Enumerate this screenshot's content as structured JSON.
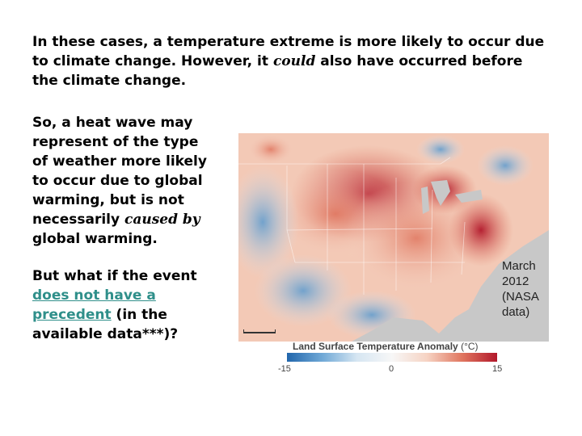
{
  "heading": {
    "part1": "In these cases, a temperature extreme is more likely to occur due to climate change. However, it ",
    "emph": "could",
    "part2": " also have occurred before the climate change."
  },
  "paragraph1": {
    "part1": "So, a heat wave may represent of the type of weather more likely to occur due to global warming, but is not necessarily ",
    "emph": "caused by",
    "part2": " global warming."
  },
  "paragraph2": {
    "part1": "But what if the event ",
    "link": "does not have a precedent",
    "part2": " (in the available data***)?"
  },
  "map": {
    "caption": "March 2012 (NASA data)",
    "legend_title": "Land Surface Temperature Anomaly",
    "legend_unit": "(°C)",
    "scale_min": "-15",
    "scale_mid": "0",
    "scale_max": "15",
    "colors": {
      "cold": "#2166ac",
      "neutral": "#f7f7f7",
      "warm": "#b2182b",
      "water": "#c8c8c8"
    }
  }
}
